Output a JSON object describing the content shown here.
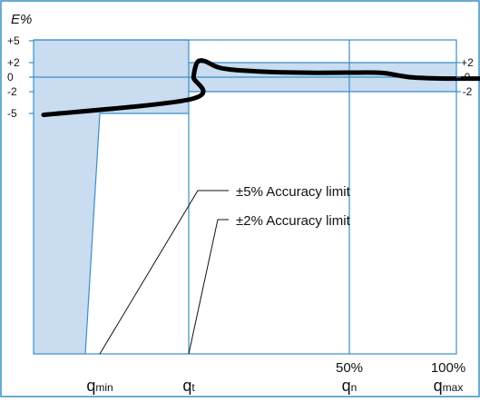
{
  "colors": {
    "frame": "#3a8ec9",
    "band": "#c9dcf0",
    "grid": "#3a8ec9",
    "curve": "#000000",
    "text": "#111111"
  },
  "chart_data": {
    "type": "line",
    "ylabel": "E%",
    "left_yticks": [
      "+5",
      "+2",
      "0",
      "-2",
      "-5"
    ],
    "left_ytick_values": [
      5,
      2,
      0,
      -2,
      -5
    ],
    "right_yticks": [
      "+2",
      "0",
      "-2"
    ],
    "right_ytick_values": [
      2,
      0,
      -2
    ],
    "x_markers": [
      {
        "id": "qmin",
        "base": "q",
        "sub": "min",
        "top": ""
      },
      {
        "id": "qt",
        "base": "q",
        "sub": "t",
        "top": ""
      },
      {
        "id": "qn",
        "base": "q",
        "sub": "n",
        "top": "50%"
      },
      {
        "id": "qmax",
        "base": "q",
        "sub": "max",
        "top": "100%"
      }
    ],
    "annotations": [
      {
        "id": "accuracy-5",
        "text": "±5% Accuracy limit",
        "limit": 5
      },
      {
        "id": "accuracy-2",
        "text": "±2% Accuracy limit",
        "limit": 2
      }
    ],
    "limits": {
      "lower_zone": 5,
      "upper_zone": 2
    },
    "error_curve": {
      "name": "",
      "x_pct": [
        0.7,
        1.0,
        1.5,
        2.2,
        3.0,
        4.0,
        5.0,
        6.5,
        8,
        10,
        13,
        17,
        21,
        25,
        30,
        40,
        50,
        60,
        65,
        70,
        80,
        90,
        100
      ],
      "y": [
        -5.2,
        -3.0,
        0.0,
        1.6,
        2.2,
        2.3,
        2.2,
        1.9,
        1.55,
        1.25,
        1.05,
        0.9,
        0.8,
        0.72,
        0.65,
        0.6,
        0.62,
        0.6,
        0.25,
        -0.05,
        -0.2,
        -0.2,
        -0.2
      ]
    }
  }
}
